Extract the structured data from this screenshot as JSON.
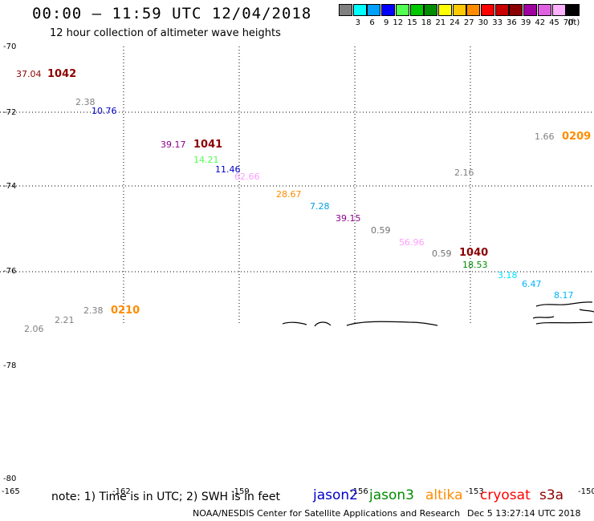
{
  "header": {
    "title": "00:00 — 11:59 UTC 12/04/2018",
    "subtitle": "12 hour collection of altimeter wave heights"
  },
  "scale": {
    "unit": "(ft)",
    "swatches": [
      {
        "label": "3",
        "color": "#808080"
      },
      {
        "label": "6",
        "color": "#00ffff"
      },
      {
        "label": "9",
        "color": "#00a0ff"
      },
      {
        "label": "12",
        "color": "#0000ff"
      },
      {
        "label": "15",
        "color": "#50ff50"
      },
      {
        "label": "18",
        "color": "#00c800"
      },
      {
        "label": "21",
        "color": "#008c00"
      },
      {
        "label": "24",
        "color": "#ffff00"
      },
      {
        "label": "27",
        "color": "#ffc800"
      },
      {
        "label": "30",
        "color": "#ff8c00"
      },
      {
        "label": "33",
        "color": "#ff0000"
      },
      {
        "label": "36",
        "color": "#c80000"
      },
      {
        "label": "39",
        "color": "#8c0000"
      },
      {
        "label": "42",
        "color": "#a000a0"
      },
      {
        "label": "45",
        "color": "#e060e0"
      },
      {
        "label": "70",
        "color": "#ffb0ff"
      },
      {
        "label": "",
        "color": "#000000"
      }
    ]
  },
  "axes": {
    "lat_labels": [
      "-70",
      "-72",
      "-74",
      "-76",
      "-78",
      "-80"
    ],
    "lon_labels": [
      "-165",
      "-162",
      "-159",
      "-156",
      "-153",
      "-150"
    ]
  },
  "observations": [
    {
      "text": "37.04",
      "color": "#8c0000"
    },
    {
      "text": "2.38",
      "color": "#808080"
    },
    {
      "text": "10.76",
      "color": "#0000c8"
    },
    {
      "text": "39.17",
      "color": "#8c008c"
    },
    {
      "text": "14.21",
      "color": "#50ff50"
    },
    {
      "text": "11.46",
      "color": "#0000c8"
    },
    {
      "text": "62.66",
      "color": "#ff9cff"
    },
    {
      "text": "28.67",
      "color": "#ff8c00"
    },
    {
      "text": "7.28",
      "color": "#00a0e0"
    },
    {
      "text": "39.15",
      "color": "#8c008c"
    },
    {
      "text": "0.59",
      "color": "#707070"
    },
    {
      "text": "56.96",
      "color": "#ff9cff"
    },
    {
      "text": "0.59",
      "color": "#707070"
    },
    {
      "text": "18.53",
      "color": "#008c00"
    },
    {
      "text": "3.18",
      "color": "#00e0ff"
    },
    {
      "text": "6.47",
      "color": "#00b4ff"
    },
    {
      "text": "8.17",
      "color": "#00b4ff"
    },
    {
      "text": "2.16",
      "color": "#808080"
    },
    {
      "text": "1.66",
      "color": "#808080"
    },
    {
      "text": "2.38",
      "color": "#808080"
    },
    {
      "text": "2.21",
      "color": "#808080"
    },
    {
      "text": "2.06",
      "color": "#808080"
    }
  ],
  "time_tags": [
    {
      "text": "1042",
      "color": "#8c0000"
    },
    {
      "text": "1041",
      "color": "#8c0000"
    },
    {
      "text": "1040",
      "color": "#8c0000"
    },
    {
      "text": "0209",
      "color": "#ff8c00"
    },
    {
      "text": "0210",
      "color": "#ff8c00"
    }
  ],
  "footer": {
    "note": "note: 1) Time is in UTC; 2) SWH is in feet",
    "satellites": [
      {
        "name": "jason2",
        "color": "#0000c8"
      },
      {
        "name": "jason3",
        "color": "#008c00"
      },
      {
        "name": "altika",
        "color": "#ff8c00"
      },
      {
        "name": "cryosat",
        "color": "#ff0000"
      },
      {
        "name": "s3a",
        "color": "#8c0000"
      }
    ],
    "credit": "NOAA/NESDIS Center for Satellite Applications and Research",
    "timestamp": "Dec  5 13:27:14 UTC 2018"
  },
  "colors": {
    "background": "#ffffff",
    "grid": "#000000",
    "coastline": "#000000"
  }
}
